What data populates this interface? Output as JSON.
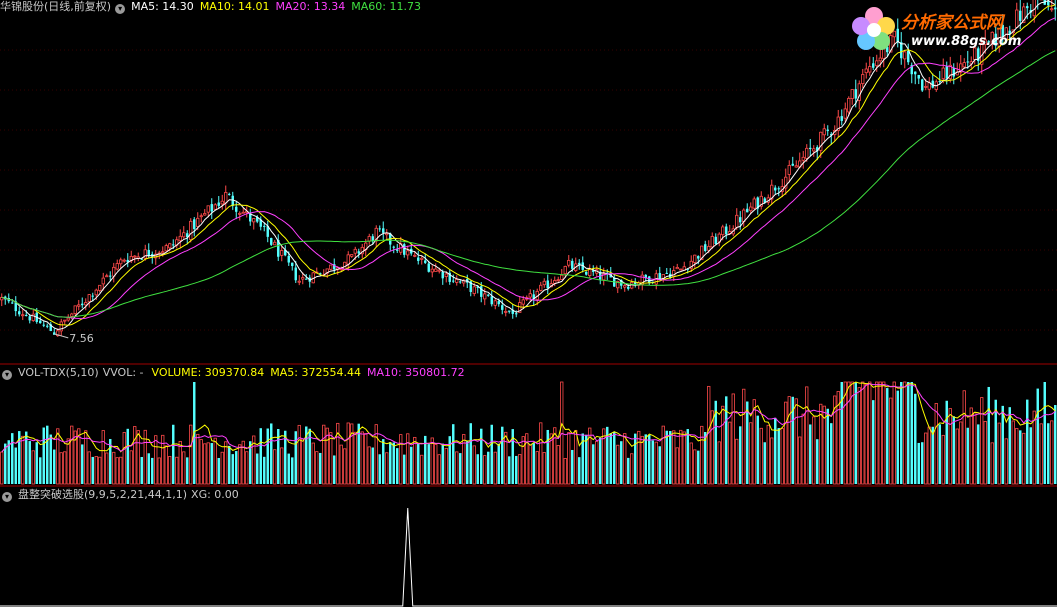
{
  "main_panel": {
    "stock_name": "华锦股份(日线,前复权)",
    "indicators": [
      {
        "label": "MA5: 14.30",
        "color": "#ffffff"
      },
      {
        "label": "MA10: 14.01",
        "color": "#ffff00"
      },
      {
        "label": "MA20: 13.34",
        "color": "#ff40ff"
      },
      {
        "label": "MA60: 11.73",
        "color": "#40e040"
      }
    ],
    "low_marker": "7.56"
  },
  "volume_panel": {
    "name": "VOL-TDX(5,10)",
    "vvol": "VVOL: -",
    "indicators": [
      {
        "label": "VOLUME: 309370.84",
        "color": "#ffff00"
      },
      {
        "label": "MA5: 372554.44",
        "color": "#ffff00"
      },
      {
        "label": "MA10: 350801.72",
        "color": "#ff40ff"
      }
    ]
  },
  "signal_panel": {
    "name": "盘整突破选股(9,9,5,2,21,44,1,1)",
    "indicators": [
      {
        "label": "XG: 0.00",
        "color": "#c8c8c8"
      }
    ]
  },
  "watermark": {
    "title": "分析家公式网",
    "url": "www.88gs.com"
  },
  "colors": {
    "up": "#ff4a4a",
    "down": "#54ffff",
    "ma5": "#ffffff",
    "ma10": "#ffff00",
    "ma20": "#ff40ff",
    "ma60": "#40e040",
    "divider": "#a00000"
  },
  "chart_data": {
    "type": "candlestick",
    "price_anchor_points": [
      {
        "bar": 0,
        "price": 8.5
      },
      {
        "bar": 15,
        "price": 7.6
      },
      {
        "bar": 35,
        "price": 9.6
      },
      {
        "bar": 48,
        "price": 9.9
      },
      {
        "bar": 64,
        "price": 11.3
      },
      {
        "bar": 75,
        "price": 10.3
      },
      {
        "bar": 85,
        "price": 9.0
      },
      {
        "bar": 100,
        "price": 9.6
      },
      {
        "bar": 107,
        "price": 10.3
      },
      {
        "bar": 118,
        "price": 9.6
      },
      {
        "bar": 134,
        "price": 8.8
      },
      {
        "bar": 146,
        "price": 8.1
      },
      {
        "bar": 162,
        "price": 9.4
      },
      {
        "bar": 178,
        "price": 8.9
      },
      {
        "bar": 194,
        "price": 9.3
      },
      {
        "bar": 210,
        "price": 10.6
      },
      {
        "bar": 226,
        "price": 12.0
      },
      {
        "bar": 238,
        "price": 13.2
      },
      {
        "bar": 248,
        "price": 14.8
      },
      {
        "bar": 255,
        "price": 15.5
      },
      {
        "bar": 264,
        "price": 14.2
      },
      {
        "bar": 279,
        "price": 15.1
      },
      {
        "bar": 296,
        "price": 16.6
      },
      {
        "bar": 301,
        "price": 16.2
      }
    ],
    "volume_spikes": [
      55,
      160,
      248,
      298
    ],
    "signal_spike_bar": 116
  }
}
